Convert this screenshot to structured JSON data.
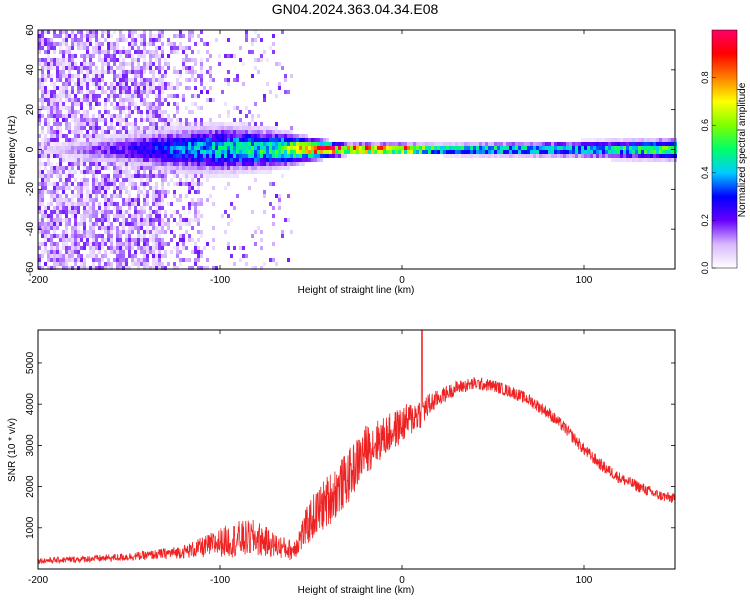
{
  "title": "GN04.2024.363.04.34.E08",
  "chart_data": [
    {
      "type": "heatmap",
      "xlabel": "Height of straight line (km)",
      "ylabel": "Frequency (Hz)",
      "xlim": [
        -200,
        150
      ],
      "ylim": [
        -60,
        60
      ],
      "x_ticks": [
        -200,
        -100,
        0,
        100
      ],
      "y_ticks": [
        -60,
        -40,
        -20,
        0,
        20,
        40,
        60
      ],
      "colorbar": {
        "label": "Normalized spectral amplitude",
        "range": [
          0.0,
          1.0
        ],
        "ticks": [
          "0.0",
          "0.2",
          "0.4",
          "0.6",
          "0.8"
        ],
        "colors": [
          "#ffffff",
          "#d8b8ff",
          "#6600ff",
          "#0000ff",
          "#00ccff",
          "#00ff66",
          "#80ff00",
          "#ffff00",
          "#ff8000",
          "#ff0000",
          "#ff0066"
        ]
      },
      "band": {
        "center_freq_hz": 0,
        "points": [
          {
            "x": -200,
            "halfwidth_hz": 2,
            "peak": 0.05
          },
          {
            "x": -130,
            "halfwidth_hz": 8,
            "peak": 0.35
          },
          {
            "x": -100,
            "halfwidth_hz": 9,
            "peak": 0.45
          },
          {
            "x": -70,
            "halfwidth_hz": 7,
            "peak": 0.55
          },
          {
            "x": -50,
            "halfwidth_hz": 4,
            "peak": 0.9
          },
          {
            "x": -30,
            "halfwidth_hz": 2,
            "peak": 1.0
          },
          {
            "x": 0,
            "halfwidth_hz": 2,
            "peak": 1.0
          },
          {
            "x": 20,
            "halfwidth_hz": 2,
            "peak": 0.55
          },
          {
            "x": 100,
            "halfwidth_hz": 3,
            "peak": 0.45
          },
          {
            "x": 150,
            "halfwidth_hz": 4,
            "peak": 0.6
          }
        ]
      }
    },
    {
      "type": "line",
      "xlabel": "Height of straight line (km)",
      "ylabel": "SNR (10 * v/v)",
      "xlim": [
        -200,
        150
      ],
      "ylim": [
        0,
        5800
      ],
      "x_ticks": [
        -200,
        -100,
        0,
        100
      ],
      "y_ticks": [
        1000,
        2000,
        3000,
        4000,
        5000
      ],
      "color": "#ee2222",
      "series": [
        {
          "x": [
            -200,
            -180,
            -160,
            -140,
            -120,
            -110,
            -100,
            -90,
            -80,
            -70,
            -60,
            -50,
            -40,
            -30,
            -20,
            -10,
            0,
            10,
            20,
            30,
            40,
            50,
            60,
            70,
            80,
            90,
            100,
            110,
            120,
            130,
            140,
            150
          ],
          "y": [
            200,
            230,
            270,
            330,
            420,
            520,
            650,
            720,
            750,
            580,
            450,
            1200,
            1700,
            2200,
            2900,
            3200,
            3500,
            3800,
            4150,
            4400,
            4500,
            4450,
            4300,
            4100,
            3800,
            3400,
            2900,
            2500,
            2200,
            2000,
            1800,
            1700
          ],
          "noise": [
            70,
            80,
            90,
            110,
            160,
            250,
            350,
            450,
            450,
            300,
            250,
            550,
            650,
            650,
            600,
            500,
            450,
            400,
            200,
            170,
            160,
            150,
            150,
            150,
            150,
            150,
            150,
            150,
            140,
            140,
            130,
            130
          ]
        }
      ],
      "annotations": [
        {
          "x": 11,
          "y": 5800,
          "label": ""
        }
      ]
    }
  ]
}
